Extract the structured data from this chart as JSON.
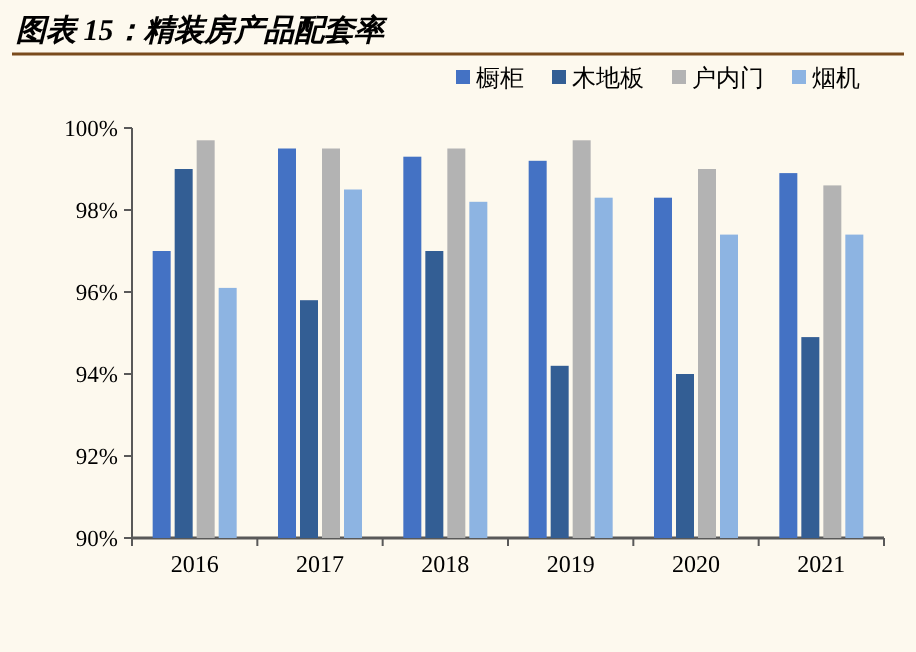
{
  "chart_data": {
    "type": "bar",
    "title": "图表 15：精装房产品配套率",
    "categories": [
      "2016",
      "2017",
      "2018",
      "2019",
      "2020",
      "2021"
    ],
    "series": [
      {
        "name": "橱柜",
        "color": "#4472c4",
        "values": [
          97.0,
          99.5,
          99.3,
          99.2,
          98.3,
          98.9
        ]
      },
      {
        "name": "木地板",
        "color": "#335e94",
        "values": [
          99.0,
          95.8,
          97.0,
          94.2,
          94.0,
          94.9
        ]
      },
      {
        "name": "户内门",
        "color": "#b3b3b3",
        "values": [
          99.7,
          99.5,
          99.5,
          99.7,
          99.0,
          98.6
        ]
      },
      {
        "name": "烟机",
        "color": "#8db4e2",
        "values": [
          96.1,
          98.5,
          98.2,
          98.3,
          97.4,
          97.4
        ]
      }
    ],
    "ylim": [
      90,
      100
    ],
    "yticks": [
      {
        "value": 90,
        "label": "90%"
      },
      {
        "value": 92,
        "label": "92%"
      },
      {
        "value": 94,
        "label": "94%"
      },
      {
        "value": 96,
        "label": "96%"
      },
      {
        "value": 98,
        "label": "98%"
      },
      {
        "value": 100,
        "label": "100%"
      }
    ],
    "legend": "top right",
    "grid": false
  }
}
